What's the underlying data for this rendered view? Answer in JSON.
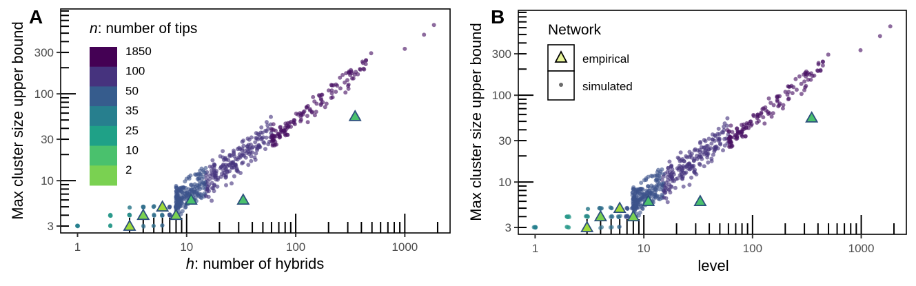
{
  "chart_data": [
    {
      "type": "scatter",
      "panel_label": "A",
      "xlabel_var": "h",
      "xlabel_rest": ": number of hybrids",
      "ylabel": "Max cluster size upper bound",
      "x_scale": "log10",
      "y_scale": "log10",
      "xlim": [
        0.7,
        2600
      ],
      "ylim": [
        2.5,
        950
      ],
      "x_ticks": [
        1,
        10,
        100,
        1000
      ],
      "x_tick_labels": [
        "1",
        "10",
        "100",
        "1000"
      ],
      "y_ticks": [
        3,
        10,
        30,
        100,
        300
      ],
      "y_tick_labels": [
        "3",
        "10",
        "30",
        "100",
        "300"
      ],
      "rug": true,
      "legend": {
        "title_var": "n",
        "title_rest": ": number of tips",
        "type": "color-bins",
        "bins": [
          {
            "label": "1850",
            "color": "#440154"
          },
          {
            "label": "100",
            "color": "#46337e"
          },
          {
            "label": "50",
            "color": "#365c8d"
          },
          {
            "label": "35",
            "color": "#277f8e"
          },
          {
            "label": "25",
            "color": "#1fa187"
          },
          {
            "label": "10",
            "color": "#4ac16d"
          },
          {
            "label": "2",
            "color": "#7ad151"
          }
        ]
      },
      "empirical": [
        {
          "x": 3,
          "y": 3,
          "color": "#9fda3a"
        },
        {
          "x": 4,
          "y": 4,
          "color": "#7ad151"
        },
        {
          "x": 6,
          "y": 5,
          "color": "#9fda3a"
        },
        {
          "x": 8,
          "y": 4,
          "color": "#7ad151"
        },
        {
          "x": 11,
          "y": 6,
          "color": "#4ac16d"
        },
        {
          "x": 33,
          "y": 6,
          "color": "#4ac16d"
        },
        {
          "x": 350,
          "y": 55,
          "color": "#4ac16d"
        }
      ],
      "simulated_notes": "approximately 600 simulated networks; max cluster size grows roughly linearly with h above h≈10, clustered near y = 3–5 for small h",
      "simulated_highlights": [
        {
          "x": 1,
          "y": 3
        },
        {
          "x": 2,
          "y": 3
        },
        {
          "x": 2,
          "y": 4
        },
        {
          "x": 1000,
          "y": 330
        },
        {
          "x": 1500,
          "y": 480
        },
        {
          "x": 1850,
          "y": 620
        }
      ]
    },
    {
      "type": "scatter",
      "panel_label": "B",
      "xlabel": "level",
      "ylabel": "Max cluster size upper bound",
      "x_scale": "log10",
      "y_scale": "log10",
      "xlim": [
        0.7,
        2600
      ],
      "ylim": [
        2.5,
        950
      ],
      "x_ticks": [
        1,
        10,
        100,
        1000
      ],
      "x_tick_labels": [
        "1",
        "10",
        "100",
        "1000"
      ],
      "y_ticks": [
        3,
        10,
        30,
        100,
        300
      ],
      "y_tick_labels": [
        "3",
        "10",
        "30",
        "100",
        "300"
      ],
      "rug": true,
      "legend": {
        "title": "Network",
        "type": "shape",
        "entries": [
          {
            "label": "empirical",
            "shape": "triangle"
          },
          {
            "label": "simulated",
            "shape": "point"
          }
        ]
      },
      "empirical": [
        {
          "x": 3,
          "y": 3,
          "color": "#9fda3a"
        },
        {
          "x": 4,
          "y": 4,
          "color": "#7ad151"
        },
        {
          "x": 6,
          "y": 5,
          "color": "#9fda3a"
        },
        {
          "x": 8,
          "y": 4,
          "color": "#7ad151"
        },
        {
          "x": 11,
          "y": 6,
          "color": "#4ac16d"
        },
        {
          "x": 33,
          "y": 6,
          "color": "#4ac16d"
        },
        {
          "x": 350,
          "y": 55,
          "color": "#4ac16d"
        }
      ],
      "simulated_notes": "same simulated networks plotted against network level",
      "simulated_highlights": [
        {
          "x": 1,
          "y": 3
        },
        {
          "x": 2,
          "y": 3
        },
        {
          "x": 2,
          "y": 4
        },
        {
          "x": 1000,
          "y": 330
        },
        {
          "x": 1500,
          "y": 480
        },
        {
          "x": 1850,
          "y": 620
        }
      ]
    }
  ]
}
